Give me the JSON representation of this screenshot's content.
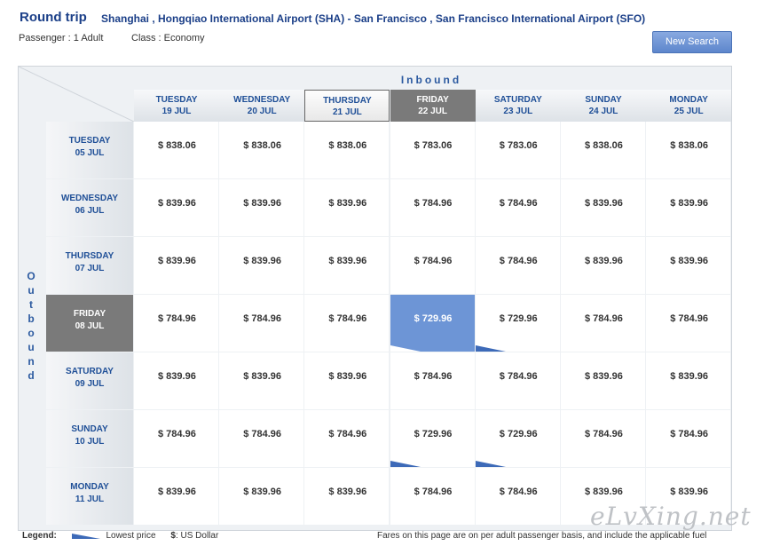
{
  "header": {
    "trip_type": "Round trip",
    "route": "Shanghai , Hongqiao International Airport (SHA) - San Francisco , San Francisco International Airport (SFO)",
    "passenger": "Passenger : 1 Adult",
    "class": "Class : Economy",
    "new_search": "New Search"
  },
  "grid": {
    "inbound_label": "Inbound",
    "outbound_label": "Outbound",
    "columns": [
      {
        "day": "TUESDAY",
        "date": "19 JUL"
      },
      {
        "day": "WEDNESDAY",
        "date": "20 JUL"
      },
      {
        "day": "THURSDAY",
        "date": "21 JUL"
      },
      {
        "day": "FRIDAY",
        "date": "22 JUL"
      },
      {
        "day": "SATURDAY",
        "date": "23 JUL"
      },
      {
        "day": "SUNDAY",
        "date": "24 JUL"
      },
      {
        "day": "MONDAY",
        "date": "25 JUL"
      }
    ],
    "rows": [
      {
        "day": "TUESDAY",
        "date": "05 JUL",
        "prices": [
          "$ 838.06",
          "$ 838.06",
          "$ 838.06",
          "$ 783.06",
          "$ 783.06",
          "$ 838.06",
          "$ 838.06"
        ]
      },
      {
        "day": "WEDNESDAY",
        "date": "06 JUL",
        "prices": [
          "$ 839.96",
          "$ 839.96",
          "$ 839.96",
          "$ 784.96",
          "$ 784.96",
          "$ 839.96",
          "$ 839.96"
        ]
      },
      {
        "day": "THURSDAY",
        "date": "07 JUL",
        "prices": [
          "$ 839.96",
          "$ 839.96",
          "$ 839.96",
          "$ 784.96",
          "$ 784.96",
          "$ 839.96",
          "$ 839.96"
        ]
      },
      {
        "day": "FRIDAY",
        "date": "08 JUL",
        "prices": [
          "$ 784.96",
          "$ 784.96",
          "$ 784.96",
          "$ 729.96",
          "$ 729.96",
          "$ 784.96",
          "$ 784.96"
        ]
      },
      {
        "day": "SATURDAY",
        "date": "09 JUL",
        "prices": [
          "$ 839.96",
          "$ 839.96",
          "$ 839.96",
          "$ 784.96",
          "$ 784.96",
          "$ 839.96",
          "$ 839.96"
        ]
      },
      {
        "day": "SUNDAY",
        "date": "10 JUL",
        "prices": [
          "$ 784.96",
          "$ 784.96",
          "$ 784.96",
          "$ 729.96",
          "$ 729.96",
          "$ 784.96",
          "$ 784.96"
        ]
      },
      {
        "day": "MONDAY",
        "date": "11 JUL",
        "prices": [
          "$ 839.96",
          "$ 839.96",
          "$ 839.96",
          "$ 784.96",
          "$ 784.96",
          "$ 839.96",
          "$ 839.96"
        ]
      }
    ],
    "selected_row": 3,
    "selected_col": 3,
    "highlight_col": 2,
    "lowest_cells": [
      [
        3,
        3
      ],
      [
        3,
        4
      ],
      [
        5,
        3
      ],
      [
        5,
        4
      ]
    ],
    "accent": "#6d95d6"
  },
  "legend": {
    "title": "Legend:",
    "lowest": "Lowest price",
    "currency_sym": "$",
    "currency": ": US Dollar",
    "note": "Fares on this page are on per adult passenger basis, and include the applicable fuel"
  },
  "watermark": "eLvXing.net"
}
